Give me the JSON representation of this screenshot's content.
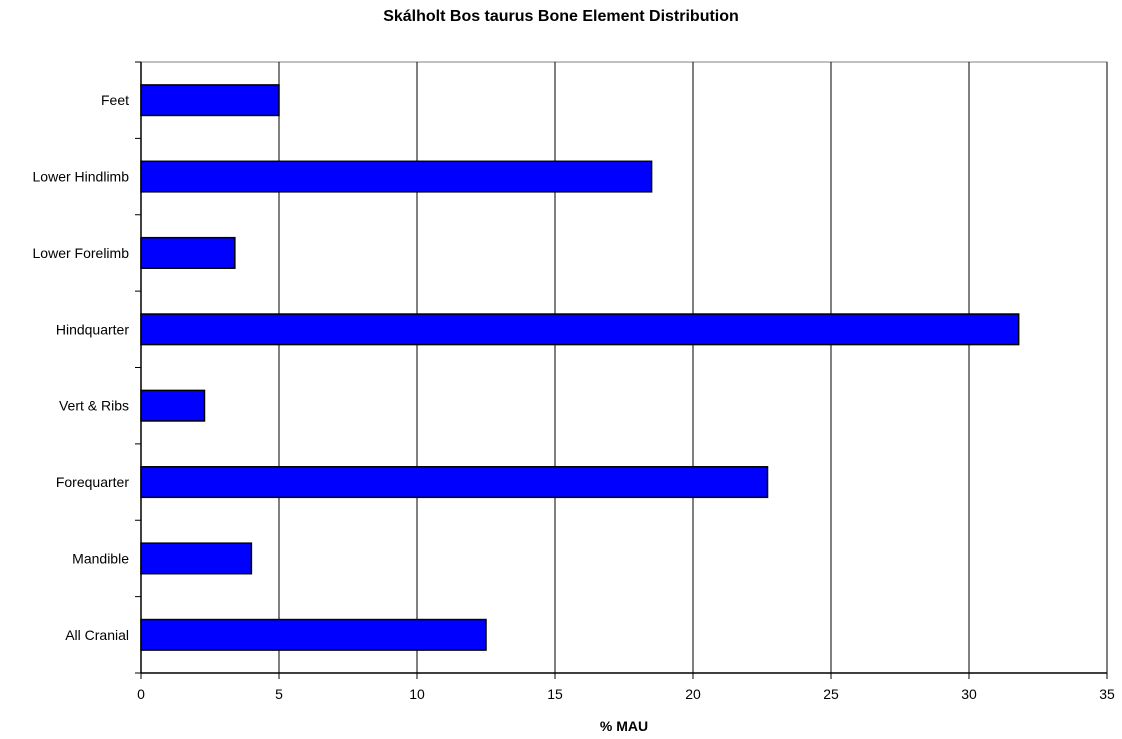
{
  "chart_data": {
    "type": "bar",
    "orientation": "horizontal",
    "title": "Skálholt Bos taurus Bone Element Distribution",
    "xlabel": "% MAU",
    "ylabel": "",
    "xlim": [
      0,
      35
    ],
    "xticks": [
      "0",
      "5",
      "10",
      "15",
      "20",
      "25",
      "30",
      "35"
    ],
    "categories": [
      "Feet",
      "Lower Hindlimb",
      "Lower Forelimb",
      "Hindquarter",
      "Vert & Ribs",
      "Forequarter",
      "Mandible",
      "All Cranial"
    ],
    "values": [
      5.0,
      18.5,
      3.4,
      31.8,
      2.3,
      22.7,
      4.0,
      12.5
    ],
    "grid": "vertical",
    "legend": "none",
    "colors": {
      "bar": "#0000ff",
      "bar_stroke": "#000000",
      "grid": "#000000",
      "plot_border": "#808080"
    }
  }
}
